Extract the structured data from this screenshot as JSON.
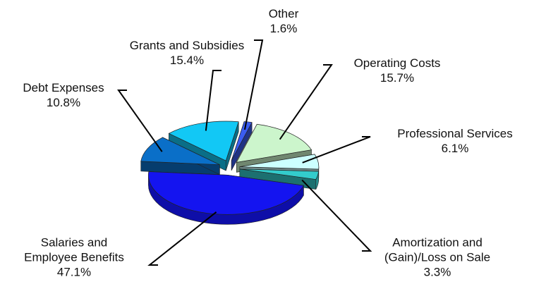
{
  "chart_data": {
    "type": "pie",
    "categories": [
      "Operating Costs",
      "Professional Services",
      "Amortization and (Gain)/Loss on Sale",
      "Salaries and Employee Benefits",
      "Debt Expenses",
      "Grants and Subsidies",
      "Other"
    ],
    "values": [
      15.7,
      6.1,
      3.3,
      47.1,
      10.8,
      15.4,
      1.6
    ],
    "value_labels": [
      "15.7%",
      "6.1%",
      "3.3%",
      "47.1%",
      "10.8%",
      "15.4%",
      "1.6%"
    ],
    "colors": [
      "#ccf5cc",
      "#ccffff",
      "#33cccc",
      "#1414f0",
      "#0a6fc8",
      "#12c8f5",
      "#3a5cf0"
    ]
  }
}
